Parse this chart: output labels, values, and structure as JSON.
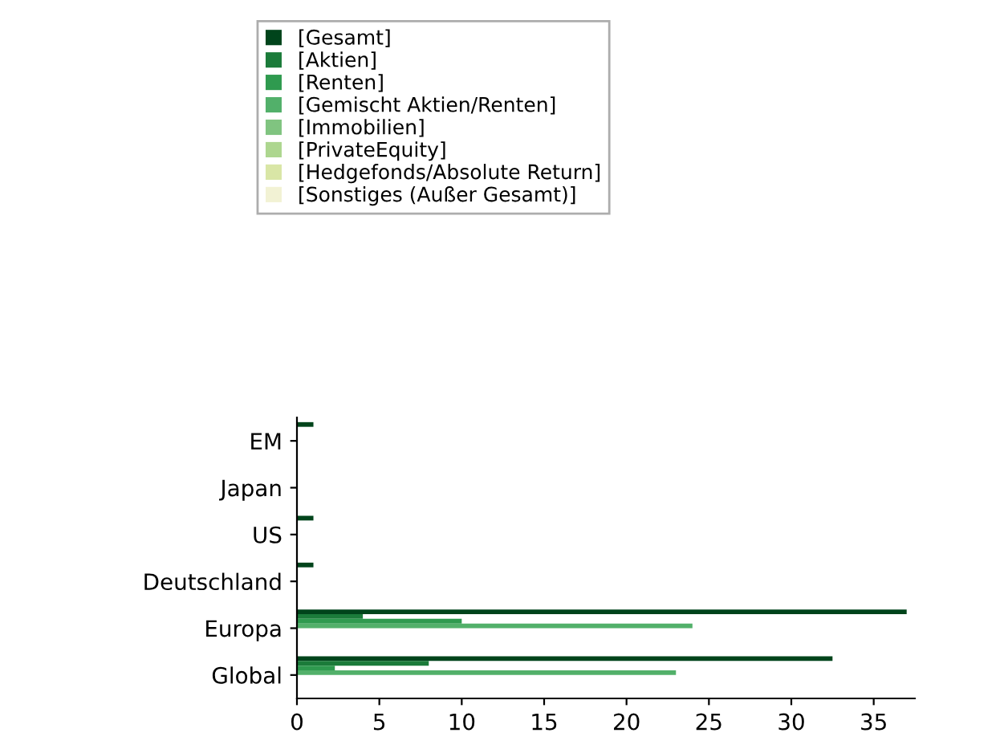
{
  "chart_data": {
    "type": "bar",
    "orientation": "horizontal",
    "categories": [
      "EM",
      "Japan",
      "US",
      "Deutschland",
      "Europa",
      "Global"
    ],
    "series": [
      {
        "name": "[Gesamt]",
        "color": "#00441b",
        "values": [
          1,
          0,
          1,
          1,
          37,
          32.5
        ]
      },
      {
        "name": "[Aktien]",
        "color": "#1b7b3a",
        "values": [
          0,
          0,
          0,
          0,
          4,
          8
        ]
      },
      {
        "name": "[Renten]",
        "color": "#2f9a4f",
        "values": [
          0,
          0,
          0,
          0,
          10,
          2.3
        ]
      },
      {
        "name": "[Gemischt Aktien/Renten]",
        "color": "#52b06a",
        "values": [
          0,
          0,
          0,
          0,
          24,
          23
        ]
      },
      {
        "name": "[Immobilien]",
        "color": "#80c480",
        "values": [
          0,
          0,
          0,
          0,
          0,
          0
        ]
      },
      {
        "name": "[PrivateEquity]",
        "color": "#add68f",
        "values": [
          0,
          0,
          0,
          0,
          0,
          0
        ]
      },
      {
        "name": "[Hedgefonds/Absolute Return]",
        "color": "#d9e6a6",
        "values": [
          0,
          0,
          0,
          0,
          0,
          0
        ]
      },
      {
        "name": "[Sonstiges (Außer Gesamt)]",
        "color": "#f2f2d4",
        "values": [
          0,
          0,
          0,
          0,
          0,
          0
        ]
      }
    ],
    "xlim": [
      0,
      37.5
    ],
    "xticks": [
      0,
      5,
      10,
      15,
      20,
      25,
      30,
      35
    ],
    "grid": false,
    "legend": "top"
  }
}
